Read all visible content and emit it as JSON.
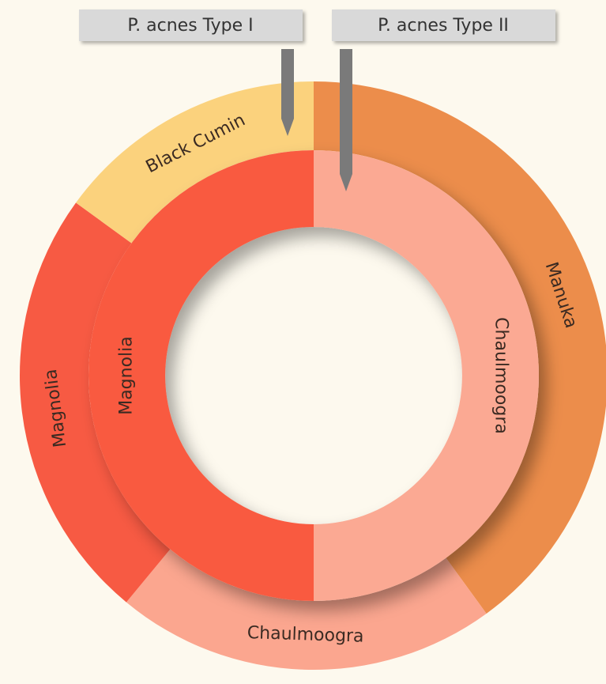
{
  "chart_data": {
    "type": "donut",
    "series": [
      {
        "name": "P. acnes Type I",
        "categories": [
          "Manuka",
          "Chaulmoogra",
          "Magnolia",
          "Black Cumin"
        ],
        "values": [
          40,
          21,
          24,
          15
        ],
        "colors": [
          "#ec8d4b",
          "#fba68f",
          "#f75a43",
          "#fbd27d"
        ]
      },
      {
        "name": "P. acnes Type II",
        "categories": [
          "Chaulmoogra",
          "Magnolia"
        ],
        "values": [
          50,
          50
        ],
        "colors": [
          "#fba993",
          "#f95a41"
        ]
      }
    ]
  }
}
